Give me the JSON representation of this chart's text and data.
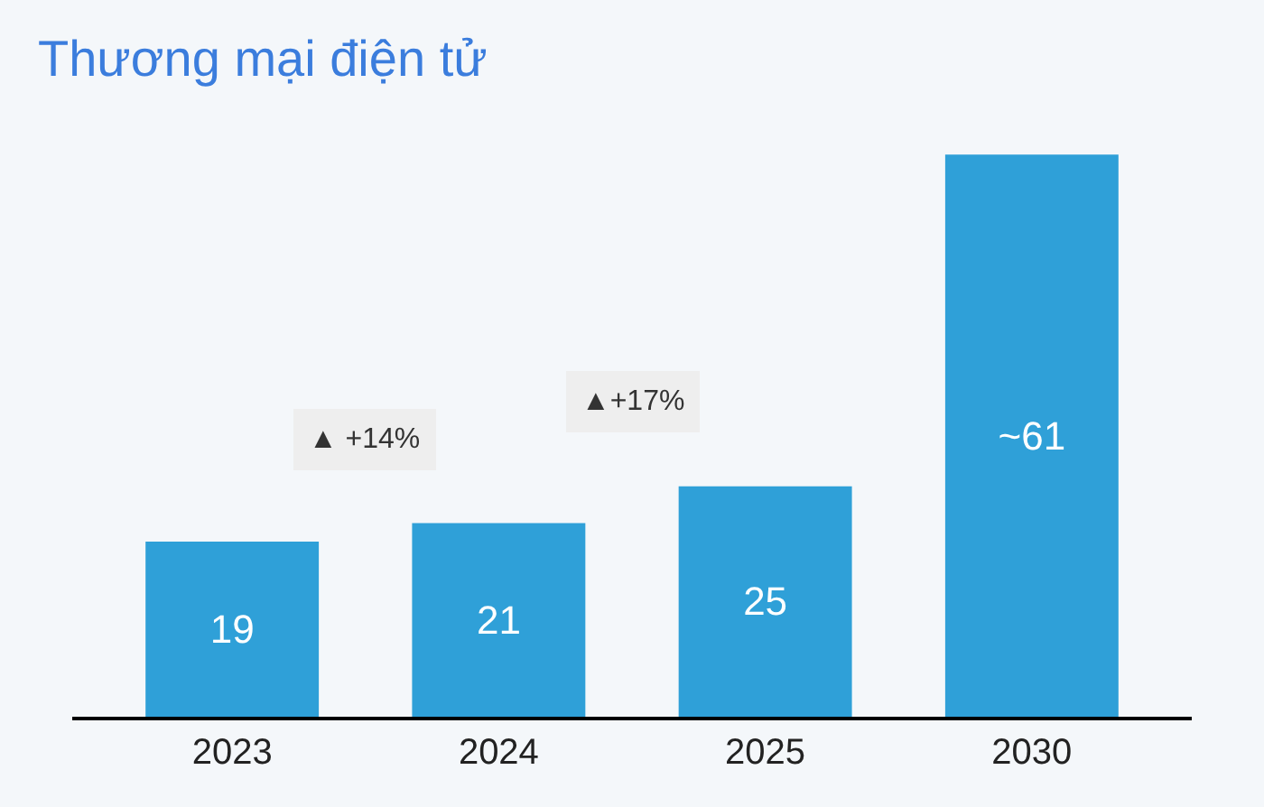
{
  "chart_data": {
    "type": "bar",
    "title": "Thương mại điện tử",
    "categories": [
      "2023",
      "2024",
      "2025",
      "2030"
    ],
    "values": [
      19,
      21,
      25,
      61
    ],
    "value_labels": [
      "19",
      "21",
      "25",
      "~61"
    ],
    "color": "#2fa0d8",
    "annotations": [
      "▲ +14%",
      "▲+17%"
    ],
    "grid": false,
    "legend": false
  }
}
